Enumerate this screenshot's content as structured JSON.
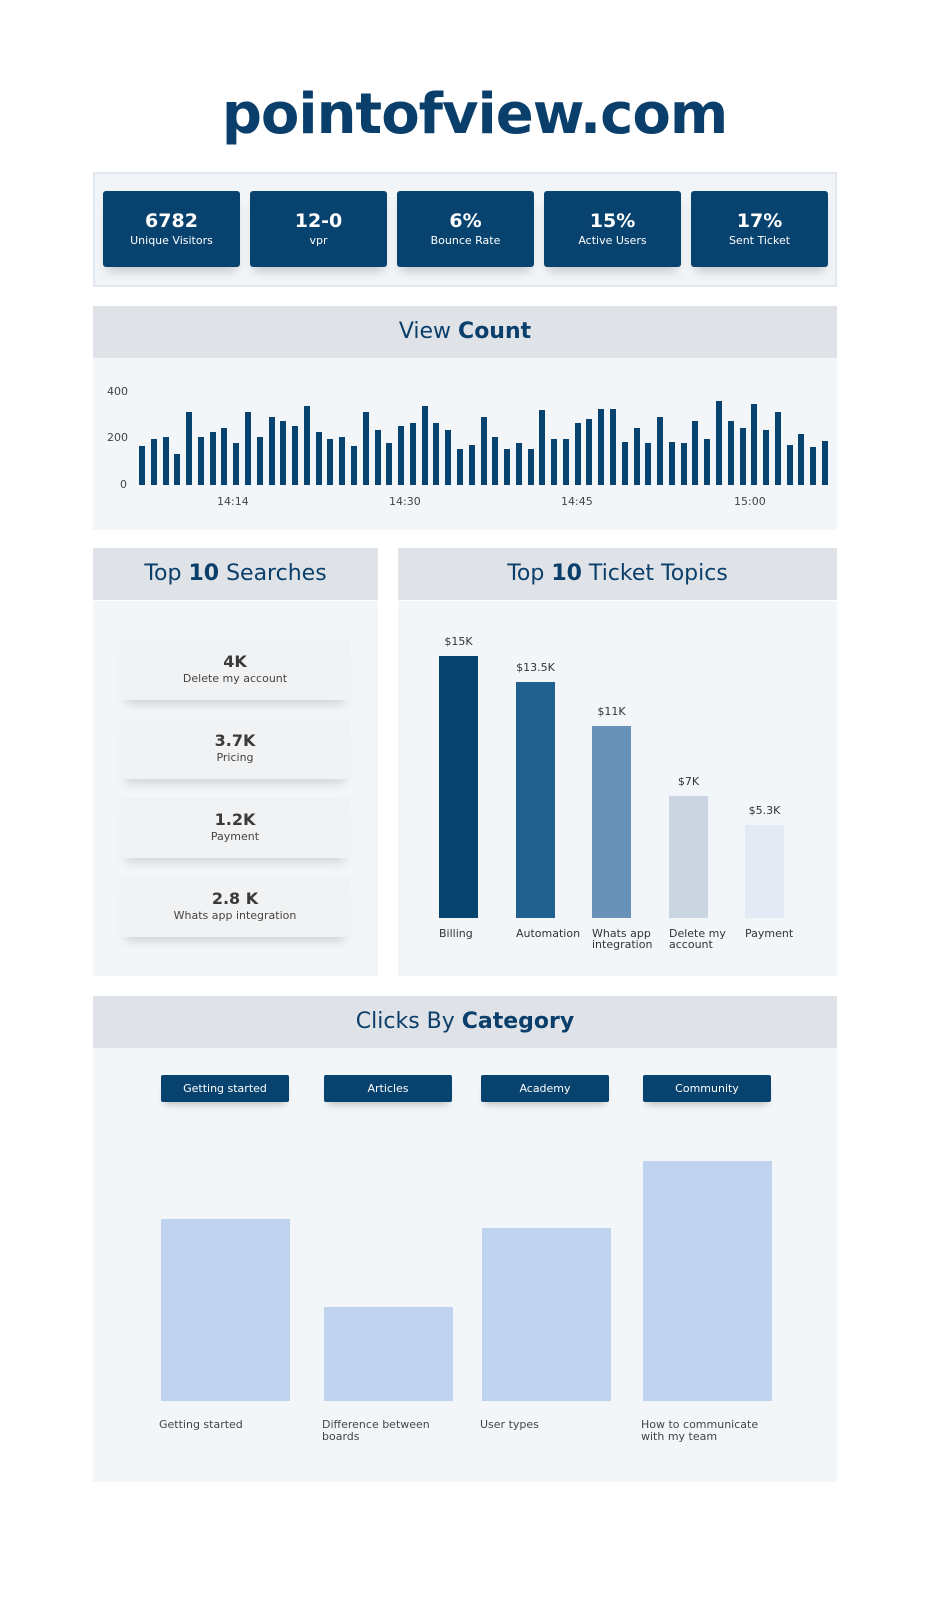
{
  "title": "pointofview.com",
  "kpis": [
    {
      "value": "6782",
      "label": "Unique Visitors"
    },
    {
      "value": "12-0",
      "label": "vpr"
    },
    {
      "value": "6%",
      "label": "Bounce Rate"
    },
    {
      "value": "15%",
      "label": "Active Users"
    },
    {
      "value": "17%",
      "label": "Sent Ticket"
    }
  ],
  "view_count": {
    "title_light": "View ",
    "title_bold": "Count"
  },
  "searches": {
    "title_light1": "Top ",
    "title_bold": "10",
    "title_light2": " Searches",
    "items": [
      {
        "value": "4K",
        "label": "Delete my account"
      },
      {
        "value": "3.7K",
        "label": "Pricing"
      },
      {
        "value": "1.2K",
        "label": "Payment"
      },
      {
        "value": "2.8 K",
        "label": "Whats app integration"
      }
    ]
  },
  "tickets": {
    "title_light1": "Top ",
    "title_bold": "10",
    "title_light2": " Ticket Topics"
  },
  "clicks": {
    "title_light": "Clicks By ",
    "title_bold": "Category",
    "buttons": [
      "Getting started",
      "Articles",
      "Academy",
      "Community"
    ]
  },
  "chart_data": [
    {
      "type": "bar",
      "title": "View Count",
      "ylim": [
        0,
        400
      ],
      "yticks": [
        "0",
        "200",
        "400"
      ],
      "xticks": [
        "14:14",
        "14:30",
        "14:45",
        "15:00"
      ],
      "values": [
        166,
        196,
        203,
        133,
        310,
        203,
        224,
        243,
        178,
        310,
        203,
        288,
        271,
        252,
        338,
        224,
        197,
        203,
        166,
        310,
        232,
        178,
        252,
        262,
        338,
        262,
        232,
        154,
        169,
        288,
        203,
        154,
        178,
        154,
        320,
        196,
        197,
        262,
        281,
        322,
        322,
        185,
        243,
        178,
        291,
        185,
        178,
        271,
        197,
        357,
        271,
        243,
        345,
        232,
        310,
        169,
        217,
        161,
        187
      ]
    },
    {
      "type": "bar",
      "title": "Top 10 Ticket Topics",
      "categories": [
        "Billing",
        "Automation",
        "Whats app integration",
        "Delete my account",
        "Payment"
      ],
      "values": [
        15,
        13.5,
        11,
        7,
        5.3
      ],
      "labels": [
        "$15K",
        "$13.5K",
        "$11K",
        "$7K",
        "$5.3K"
      ],
      "colors": [
        "#08426e",
        "#21618f",
        "#6892b8",
        "#cbd5e1",
        "#e3eaf3"
      ]
    },
    {
      "type": "bar",
      "title": "Clicks By Category",
      "categories": [
        "Getting started",
        "Difference between boards",
        "User types",
        "How to communicate with my team"
      ],
      "values": [
        0.76,
        0.39,
        0.72,
        1.0
      ],
      "color": "#bfd2ee"
    }
  ]
}
